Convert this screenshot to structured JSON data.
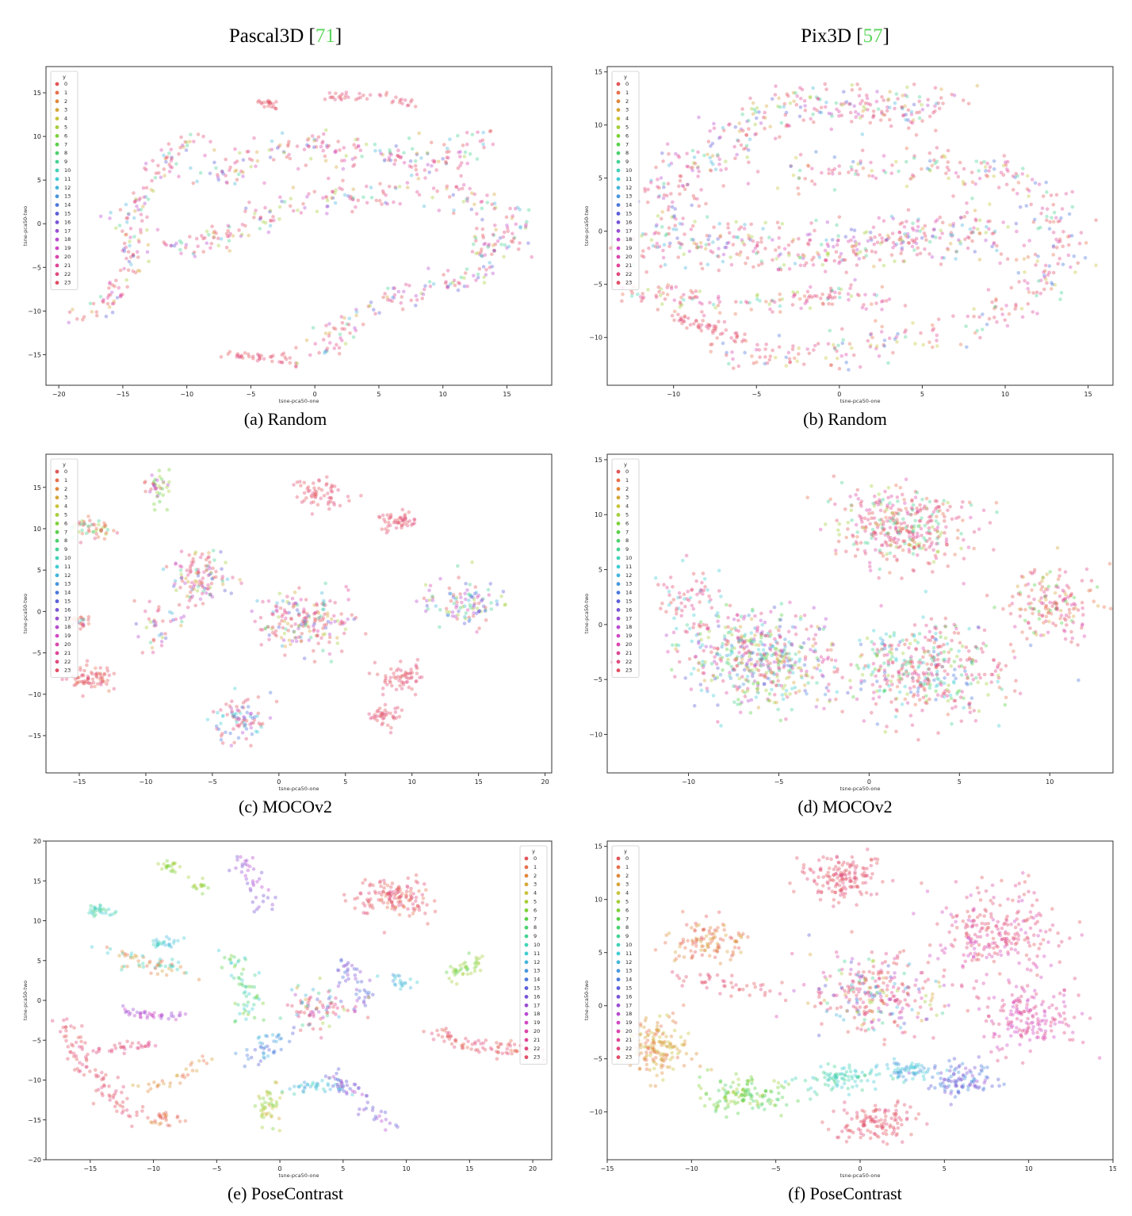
{
  "columns": [
    {
      "label": "Pascal3D",
      "ref": "71"
    },
    {
      "label": "Pix3D",
      "ref": "57"
    }
  ],
  "legend": {
    "title": "y",
    "items": [
      "0",
      "1",
      "2",
      "3",
      "4",
      "5",
      "6",
      "7",
      "8",
      "9",
      "10",
      "11",
      "12",
      "13",
      "14",
      "15",
      "16",
      "17",
      "18",
      "19",
      "20",
      "21",
      "22",
      "23"
    ],
    "colors": [
      "#e15759",
      "#e8704b",
      "#e0883b",
      "#d7a63a",
      "#c9c43a",
      "#a6cf3d",
      "#7fd13b",
      "#59d14a",
      "#4dd16e",
      "#47d394",
      "#45d2b8",
      "#45ccd4",
      "#47b5dc",
      "#4a97dd",
      "#4c79dc",
      "#5b5fd8",
      "#7a55d6",
      "#9a4fd4",
      "#b94ccf",
      "#d049c6",
      "#db47ae",
      "#df4796",
      "#e04a7e",
      "#e14f66"
    ]
  },
  "chart_data": [
    {
      "id": "a",
      "type": "scatter",
      "caption": "(a) Random",
      "xlabel": "tsne-pca50-one",
      "ylabel": "tsne-pca50-two",
      "xlim": [
        -21,
        18.5
      ],
      "ylim": [
        -18.5,
        18
      ],
      "xticks": [
        -20,
        -15,
        -10,
        -5,
        0,
        5,
        10,
        15
      ],
      "yticks": [
        -15,
        -10,
        -5,
        0,
        5,
        10,
        15
      ],
      "legend_position": "upper left",
      "grid": false,
      "pattern": "a"
    },
    {
      "id": "b",
      "type": "scatter",
      "caption": "(b) Random",
      "xlabel": "tsne-pca50-one",
      "ylabel": "tsne-pca50-two",
      "xlim": [
        -14,
        16.5
      ],
      "ylim": [
        -14.5,
        15.5
      ],
      "xticks": [
        -10,
        -5,
        0,
        5,
        10,
        15
      ],
      "yticks": [
        -10,
        -5,
        0,
        5,
        10,
        15
      ],
      "legend_position": "upper left",
      "grid": false,
      "pattern": "b"
    },
    {
      "id": "c",
      "type": "scatter",
      "caption": "(c) MOCOv2",
      "xlabel": "tsne-pca50-one",
      "ylabel": "tsne-pca50-two",
      "xlim": [
        -17.5,
        20.5
      ],
      "ylim": [
        -19.5,
        19
      ],
      "xticks": [
        -15,
        -10,
        -5,
        0,
        5,
        10,
        15,
        20
      ],
      "yticks": [
        -15,
        -10,
        -5,
        0,
        5,
        10,
        15
      ],
      "legend_position": "upper left",
      "grid": false,
      "pattern": "c"
    },
    {
      "id": "d",
      "type": "scatter",
      "caption": "(d) MOCOv2",
      "xlabel": "tsne-pca50-one",
      "ylabel": "tsne-pca50-two",
      "xlim": [
        -14.5,
        13.5
      ],
      "ylim": [
        -13.5,
        15.5
      ],
      "xticks": [
        -10,
        -5,
        0,
        5,
        10
      ],
      "yticks": [
        -10,
        -5,
        0,
        5,
        10,
        15
      ],
      "legend_position": "upper left",
      "grid": false,
      "pattern": "d"
    },
    {
      "id": "e",
      "type": "scatter",
      "caption": "(e) PoseContrast",
      "xlabel": "tsne-pca50-one",
      "ylabel": "tsne-pca50-two",
      "xlim": [
        -18.5,
        21.5
      ],
      "ylim": [
        -20,
        20
      ],
      "xticks": [
        -15,
        -10,
        -5,
        0,
        5,
        10,
        15,
        20
      ],
      "yticks": [
        -20,
        -15,
        -10,
        -5,
        0,
        5,
        10,
        15,
        20
      ],
      "legend_position": "upper right",
      "grid": false,
      "pattern": "e"
    },
    {
      "id": "f",
      "type": "scatter",
      "caption": "(f) PoseContrast",
      "xlabel": "tsne-pca50-one",
      "ylabel": "tsne-pca50-two",
      "xlim": [
        -15,
        15
      ],
      "ylim": [
        -14.5,
        15.5
      ],
      "xticks": [
        -15,
        -10,
        -5,
        0,
        5,
        10,
        15
      ],
      "yticks": [
        -10,
        -5,
        0,
        5,
        10,
        15
      ],
      "legend_position": "upper left",
      "grid": false,
      "pattern": "f"
    }
  ]
}
